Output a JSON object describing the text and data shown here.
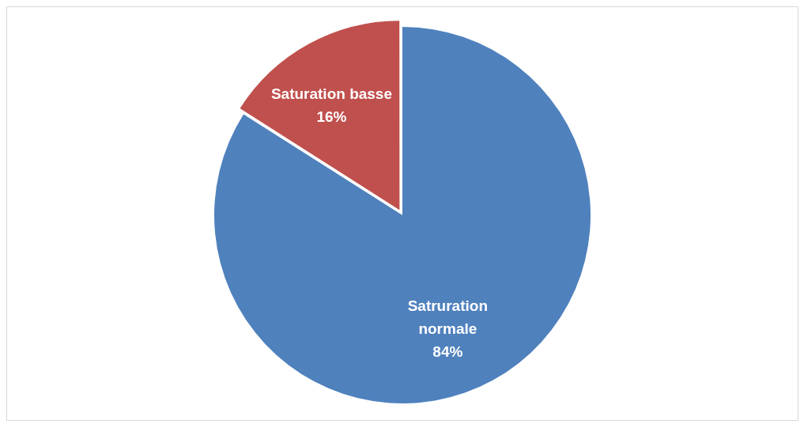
{
  "chart_data": {
    "type": "pie",
    "categories": [
      "Satruration normale",
      "Saturation basse"
    ],
    "values": [
      84,
      16
    ],
    "colors": [
      "#4f81bd",
      "#c0504d"
    ],
    "value_labels": [
      "84%",
      "16%"
    ],
    "legend": false
  }
}
